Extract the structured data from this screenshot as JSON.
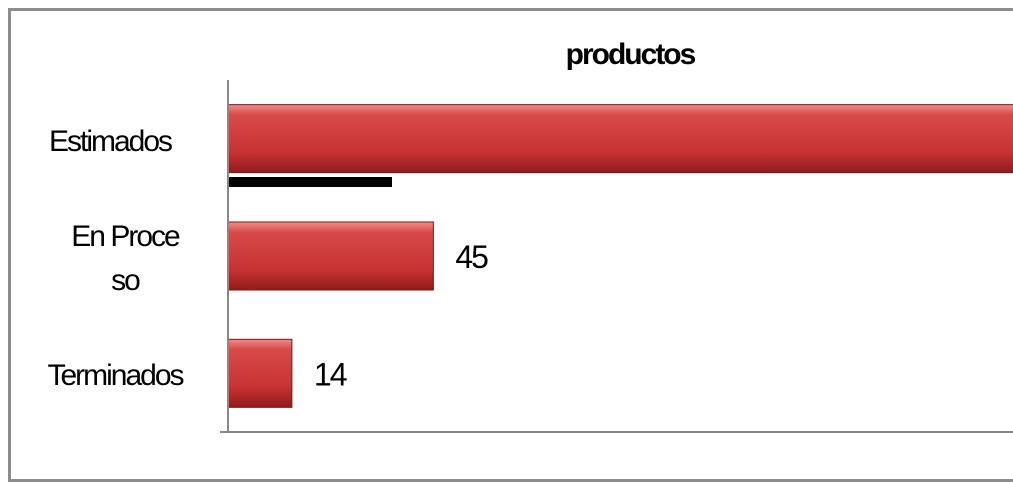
{
  "chart_data": {
    "type": "bar",
    "orientation": "horizontal",
    "title": "productos",
    "categories": [
      "Estimados",
      "En Proceso",
      "Terminados"
    ],
    "values": [
      180,
      45,
      14
    ],
    "color": "#c83232",
    "xlim": [
      0,
      172
    ]
  }
}
